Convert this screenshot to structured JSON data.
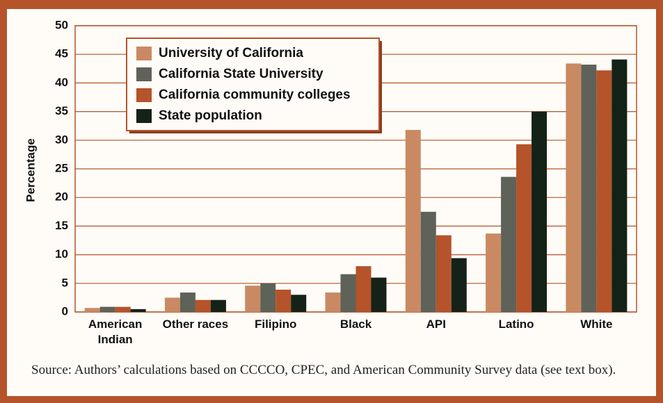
{
  "chart_data": {
    "type": "bar",
    "y_label": "Percentage",
    "categories": [
      "American Indian",
      "Other races",
      "Filipino",
      "Black",
      "API",
      "Latino",
      "White"
    ],
    "series": [
      {
        "name": "University of California",
        "color": "#c98a63",
        "values": [
          0.7,
          2.5,
          4.6,
          3.4,
          31.8,
          13.7,
          43.4
        ]
      },
      {
        "name": "California State University",
        "color": "#5e6259",
        "values": [
          0.9,
          3.4,
          5.0,
          6.6,
          17.5,
          23.6,
          43.2
        ]
      },
      {
        "name": "California community colleges",
        "color": "#b5532a",
        "values": [
          0.9,
          2.1,
          3.9,
          8.0,
          13.4,
          29.3,
          42.2
        ]
      },
      {
        "name": "State population",
        "color": "#142217",
        "values": [
          0.5,
          2.1,
          3.0,
          6.0,
          9.4,
          35.0,
          44.1
        ]
      }
    ],
    "ylim": [
      0,
      50
    ],
    "yticks": [
      0,
      5,
      10,
      15,
      20,
      25,
      30,
      35,
      40,
      45,
      50
    ],
    "grid": true,
    "legend_position": "upper left",
    "source": "Source: Authors’ calculations based on CCCCO, CPEC, and American Community Survey data (see text box)."
  }
}
